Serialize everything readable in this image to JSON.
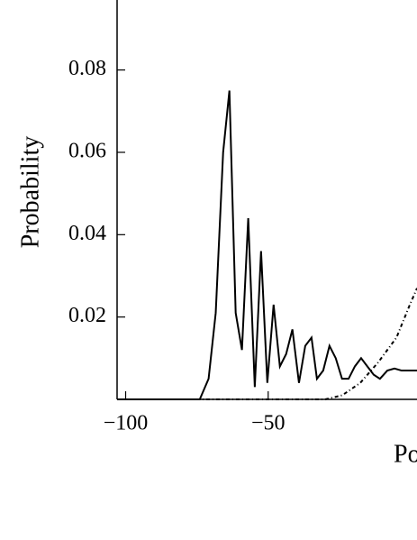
{
  "chart_data": {
    "type": "line",
    "ylabel": "Probability",
    "xlabel": "Position",
    "xlim": [
      -103,
      2.2
    ],
    "ylim": [
      0,
      0.097
    ],
    "xticks": [
      {
        "value": -100,
        "label": "−100"
      },
      {
        "value": -50,
        "label": "−50"
      }
    ],
    "yticks": [
      0.02,
      0.04,
      0.06,
      0.08
    ],
    "series": [
      {
        "color": "#000000",
        "style": "solid",
        "x": [
          -103,
          -74,
          -70.9,
          -68.4,
          -65.8,
          -63.6,
          -61.4,
          -59.2,
          -57,
          -54.7,
          -52.5,
          -50.3,
          -48.1,
          -45.9,
          -43.7,
          -41.5,
          -39.2,
          -37,
          -34.8,
          -32.9,
          -30.7,
          -28.5,
          -26.3,
          -24.1,
          -21.8,
          -19.6,
          -17.4,
          -15.2,
          -13,
          -10.8,
          -8.2,
          -5.7,
          -3.2,
          -0.3,
          2.2
        ],
        "values": [
          0,
          0,
          0.005,
          0.021,
          0.06,
          0.075,
          0.021,
          0.012,
          0.044,
          0.003,
          0.036,
          0.004,
          0.023,
          0.008,
          0.011,
          0.017,
          0.004,
          0.013,
          0.015,
          0.005,
          0.007,
          0.013,
          0.01,
          0.005,
          0.005,
          0.008,
          0.01,
          0.008,
          0.006,
          0.005,
          0.007,
          0.0075,
          0.007,
          0.007,
          0.007
        ]
      },
      {
        "color": "#000000",
        "style": "dashdot",
        "x": [
          -103,
          -30,
          -24,
          -17.7,
          -11.4,
          -5,
          -0.3,
          2.2
        ],
        "values": [
          0,
          0,
          0.001,
          0.004,
          0.009,
          0.015,
          0.023,
          0.027
        ]
      }
    ]
  }
}
